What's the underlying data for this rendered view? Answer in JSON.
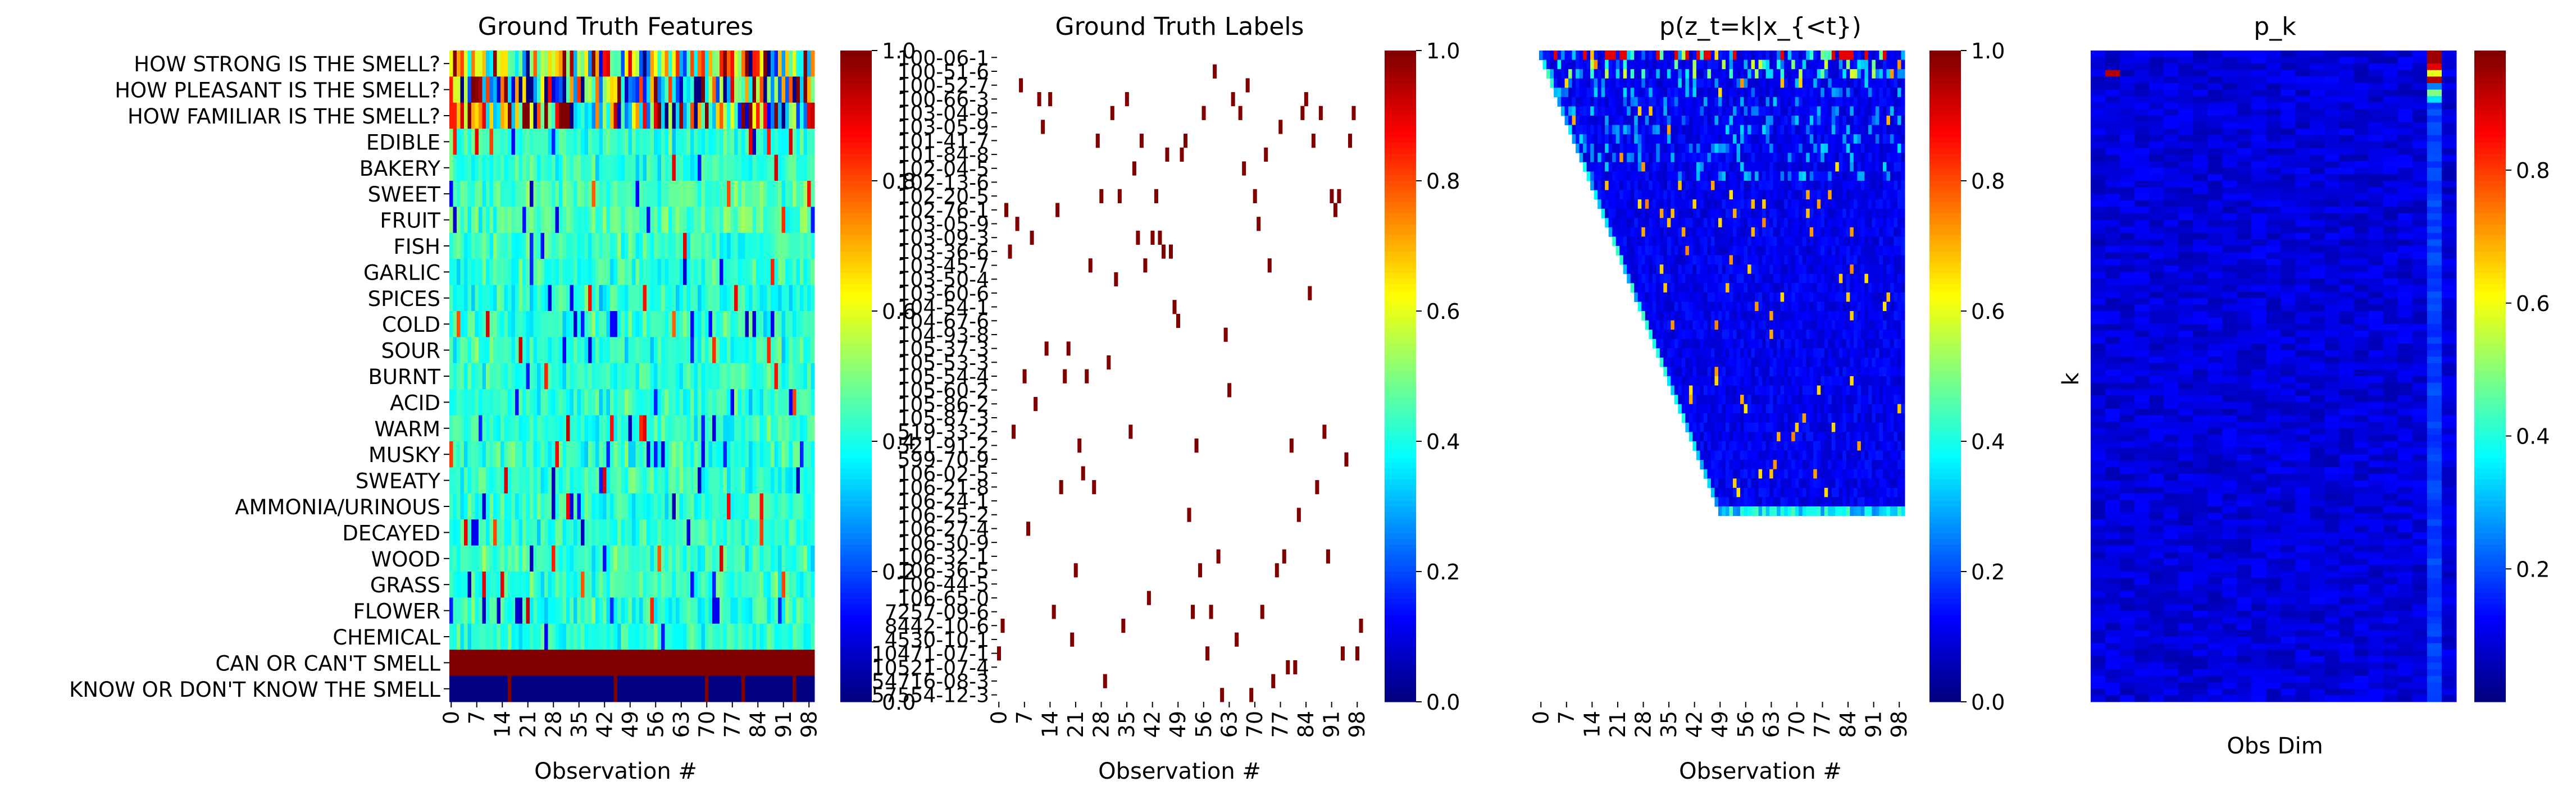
{
  "chart_data": [
    {
      "type": "heatmap",
      "title": "Ground Truth Features",
      "xlabel": "Observation #",
      "ylabel": "",
      "x_ticks": [
        "0",
        "7",
        "14",
        "21",
        "28",
        "35",
        "42",
        "49",
        "56",
        "63",
        "70",
        "77",
        "84",
        "91",
        "98"
      ],
      "y_labels": [
        "HOW STRONG IS THE SMELL?",
        "HOW PLEASANT IS THE SMELL?",
        "HOW FAMILIAR IS THE SMELL?",
        "EDIBLE",
        "BAKERY",
        "SWEET",
        "FRUIT",
        "FISH",
        "GARLIC",
        "SPICES",
        "COLD",
        "SOUR",
        "BURNT",
        "ACID",
        "WARM",
        "MUSKY",
        "SWEATY",
        "AMMONIA/URINOUS",
        "DECAYED",
        "WOOD",
        "GRASS",
        "FLOWER",
        "CHEMICAL",
        "CAN OR CAN'T SMELL",
        "KNOW OR DON'T KNOW THE SMELL"
      ],
      "n_obs": 100,
      "colorbar": {
        "ticks": [
          "0.0",
          "0.2",
          "0.4",
          "0.6",
          "0.8",
          "1.0"
        ],
        "range": [
          0,
          1
        ]
      },
      "row_mean_levels": [
        0.55,
        0.45,
        0.6,
        0.42,
        0.42,
        0.45,
        0.45,
        0.42,
        0.42,
        0.4,
        0.42,
        0.42,
        0.42,
        0.42,
        0.42,
        0.42,
        0.42,
        0.42,
        0.42,
        0.42,
        0.42,
        0.42,
        0.42,
        1.0,
        0.0
      ]
    },
    {
      "type": "heatmap",
      "title": "Ground Truth Labels",
      "xlabel": "Observation #",
      "x_ticks": [
        "0",
        "7",
        "14",
        "21",
        "28",
        "35",
        "42",
        "49",
        "56",
        "63",
        "70",
        "77",
        "84",
        "91",
        "98"
      ],
      "y_labels": [
        "100-06-1",
        "100-51-6",
        "100-52-7",
        "100-66-3",
        "103-04-9",
        "103-05-9",
        "101-41-7",
        "101-84-8",
        "102-04-5",
        "102-13-6",
        "102-20-5",
        "102-76-1",
        "103-05-9",
        "103-09-3",
        "103-36-6",
        "103-45-7",
        "103-50-4",
        "103-60-6",
        "104-54-1",
        "104-67-6",
        "104-93-8",
        "105-37-3",
        "105-53-3",
        "105-54-4",
        "105-60-2",
        "105-86-2",
        "105-87-3",
        "519-33-2",
        "521-91-2",
        "599-70-9",
        "106-02-5",
        "106-21-8",
        "106-24-1",
        "106-25-2",
        "106-27-4",
        "106-30-9",
        "106-32-1",
        "106-36-5",
        "106-44-5",
        "106-65-0",
        "7257-09-6",
        "8442-10-6",
        "4530-10-1",
        "10471-07-1",
        "10521-07-4",
        "54716-08-3",
        "57554-12-3"
      ],
      "n_obs": 100,
      "colorbar": {
        "ticks": [
          "0.0",
          "0.2",
          "0.4",
          "0.6",
          "0.8",
          "1.0"
        ],
        "range": [
          0,
          1
        ]
      }
    },
    {
      "type": "heatmap",
      "title": "p(z_t=k|x_{<t})",
      "xlabel": "Observation #",
      "x_ticks": [
        "0",
        "7",
        "14",
        "21",
        "28",
        "35",
        "42",
        "49",
        "56",
        "63",
        "70",
        "77",
        "84",
        "91",
        "98"
      ],
      "n_obs": 100,
      "n_states": 50,
      "colorbar": {
        "ticks": [
          "0.0",
          "0.2",
          "0.4",
          "0.6",
          "0.8",
          "1.0"
        ],
        "range": [
          0,
          1
        ]
      }
    },
    {
      "type": "heatmap",
      "title": "p_k",
      "xlabel": "Obs Dim",
      "ylabel": "k",
      "n_dims": 25,
      "n_states": 100,
      "colorbar": {
        "ticks": [
          "0.2",
          "0.4",
          "0.6",
          "0.8"
        ],
        "range": [
          0,
          0.98
        ]
      }
    }
  ]
}
